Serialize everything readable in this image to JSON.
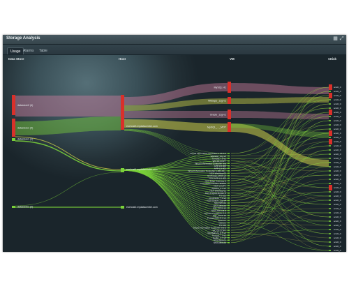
{
  "window": {
    "title": "Storage Analysis",
    "icons": [
      "grid-icon",
      "expand-icon"
    ]
  },
  "tabs": [
    {
      "label": "Usage",
      "active": true
    },
    {
      "label": "Alarms",
      "active": false
    },
    {
      "label": "Table",
      "active": false
    }
  ],
  "columns": {
    "datastore": "Data Store",
    "host": "Host",
    "vm": "VM",
    "vdisk": "vDisk"
  },
  "colors": {
    "accent": "#d9302a",
    "flow_green": "#7ad13a",
    "flow_yellow": "#cfd24a",
    "flow_pink": "#d07fa0"
  },
  "datastores": [
    {
      "label": "datastore2 (4)"
    },
    {
      "label": "datastore1 (4)"
    },
    {
      "label": "datastore1 (1)"
    },
    {
      "label": "datastore1 (2)"
    }
  ],
  "hosts": [
    {
      "label": "esxhost3.mydatacenter.com"
    },
    {
      "label": "esxhost1.mydatacenter.com"
    },
    {
      "label": "esxhost2.mydatacenter.com"
    }
  ],
  "vms_major": [
    {
      "label": "MySQL H1"
    },
    {
      "label": "Webapp_11g-v1"
    },
    {
      "label": "Oracle_11g-v1"
    },
    {
      "label": "MySQL_..._MOT"
    }
  ],
  "vms_minor": [
    "Virtual Information Controller 1-05-6.2",
    "Webapp_11g-v3",
    "Tomcat_7.0-v1",
    "WC-01-COPY",
    "Virtual Information Controller test",
    "APP-LB-003",
    "APP-LB-001",
    "Virtual Information Controller 1-201-10...",
    "NSX-WebApp-02",
    "Exchange_2013-v1",
    "NSX-APP-LB-002",
    "NSX-Edge Gateway-5",
    "ULA-WINDOWS8-VIEW03",
    "NSX-vCOPY",
    "Apache_2.4-v1",
    "NSX-WebApp-01",
    "NSX-Logical-Router-5",
    "FS-101",
    "LinuxNode_7.0-v1",
    "NSX-Oracle_11g-v4",
    "NSX-WC-01",
    "NSX-DBS-02",
    "SQL_2012-12",
    "NSX-APP-LB-0",
    "vcenter-ui-analyzer-1.0",
    "SQL_2012-10",
    "PostgreSQL_9.3-v1",
    "vpserver",
    "vServer",
    "FS-103",
    "Virtual Information Controller test-2",
    "WC-01-COPY",
    "WebSphere_8.5-v1",
    "Tomcat_7.0-v1",
    "FedEx_3.7-v1",
    "NSX-Web-01",
    "NSX-DBS-02"
  ],
  "vdisks": [
    "scsi0_0",
    "scsi0_0",
    "scsi0_0",
    "scsi0_0",
    "scsi0_0",
    "scsi0_0",
    "scsi0_0",
    "scsi0_0",
    "scsi0_0",
    "scsi0_0",
    "scsi0_0",
    "scsi0_0",
    "scsi0_0",
    "scsi0_0",
    "scsi0_0",
    "scsi0_0",
    "scsi0_0",
    "scsi0_0",
    "scsi0_0",
    "scsi0_0",
    "scsi0_0",
    "scsi0_0",
    "scsi0_0",
    "scsi0_0",
    "scsi0_0",
    "scsi0_0",
    "scsi0_0",
    "scsi0_0",
    "scsi0_0",
    "scsi0_0",
    "scsi0_0",
    "scsi0_0",
    "scsi0_0",
    "scsi0_0",
    "scsi0_0",
    "scsi0_0",
    "scsi0_0",
    "scsi0_0",
    "scsi0_0",
    "scsi0_0"
  ]
}
